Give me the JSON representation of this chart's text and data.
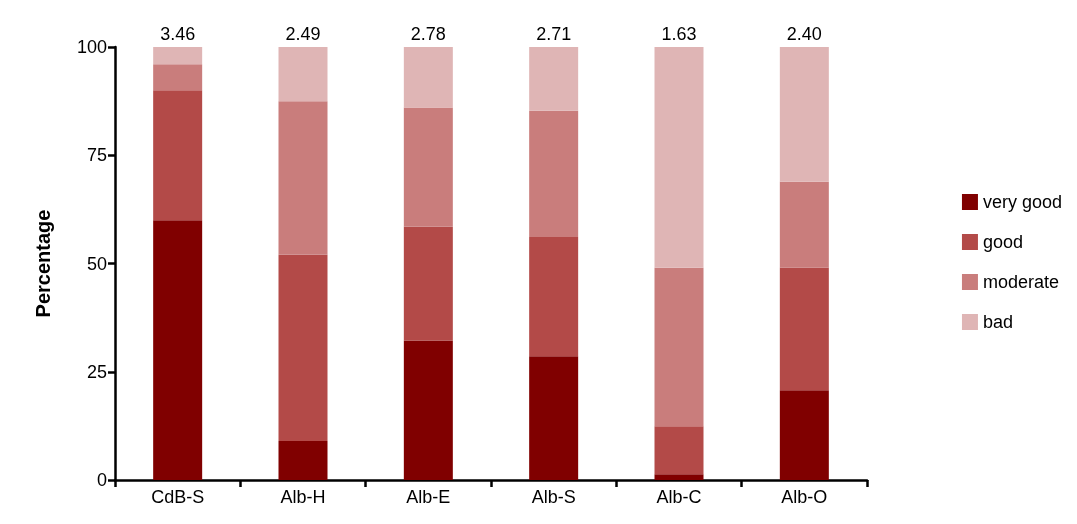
{
  "chart_data": {
    "type": "bar",
    "stacked": true,
    "ylabel": "Percentage",
    "categories": [
      "CdB-S",
      "Alb-H",
      "Alb-E",
      "Alb-S",
      "Alb-C",
      "Alb-O"
    ],
    "series": [
      {
        "name": "very good",
        "color": "#800000",
        "values": [
          60,
          9,
          32.2,
          28.6,
          1.3,
          20.7
        ]
      },
      {
        "name": "good",
        "color": "#b34a48",
        "values": [
          30,
          43,
          26.3,
          27.5,
          11.1,
          28.4
        ]
      },
      {
        "name": "moderate",
        "color": "#c97d7c",
        "values": [
          6,
          35.5,
          27.5,
          29.2,
          36.6,
          19.8
        ]
      },
      {
        "name": "bad",
        "color": "#dfb5b5",
        "values": [
          4,
          12.5,
          14,
          14.7,
          51,
          31.1
        ]
      }
    ],
    "ylim": [
      0,
      100
    ],
    "yticks": [
      0,
      25,
      50,
      75,
      100
    ],
    "grid": false,
    "legend": "right",
    "annotations": [
      {
        "text": "3.46",
        "x": "CdB-S",
        "y": 100
      },
      {
        "text": "2.49",
        "x": "Alb-H",
        "y": 100
      },
      {
        "text": "2.78",
        "x": "Alb-E",
        "y": 100
      },
      {
        "text": "2.71",
        "x": "Alb-S",
        "y": 100
      },
      {
        "text": "1.63",
        "x": "Alb-C",
        "y": 100
      },
      {
        "text": "2.40",
        "x": "Alb-O",
        "y": 100
      }
    ]
  }
}
